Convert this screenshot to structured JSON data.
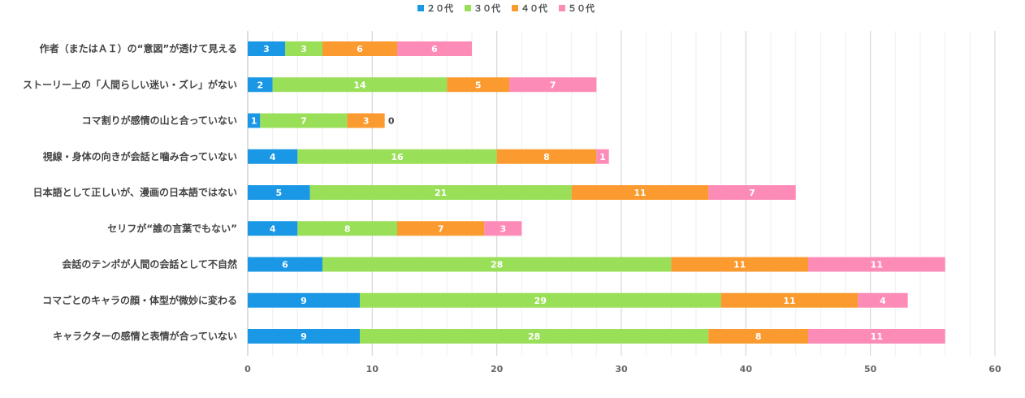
{
  "chart_data": {
    "type": "bar",
    "orientation": "horizontal",
    "stacked": true,
    "title": "",
    "xlabel": "",
    "ylabel": "",
    "xlim": [
      0,
      60
    ],
    "xticks": [
      0,
      10,
      20,
      30,
      40,
      50,
      60
    ],
    "grid": true,
    "legend_position": "top-center",
    "categories": [
      "作者（またはＡＩ）の“意図”が透けて見える",
      "ストーリー上の「人間らしい迷い・ズレ」がない",
      "コマ割りが感情の山と合っていない",
      "視線・身体の向きが会話と噛み合っていない",
      "日本語として正しいが、漫画の日本語ではない",
      "セリフが“誰の言葉でもない”",
      "会話のテンポが人間の会話として不自然",
      "コマごとのキャラの顔・体型が微妙に変わる",
      "キャラクターの感情と表情が合っていない"
    ],
    "series": [
      {
        "name": "２０代",
        "color": "#1a98e6",
        "values": [
          3,
          2,
          1,
          4,
          5,
          4,
          6,
          9,
          9
        ]
      },
      {
        "name": "３０代",
        "color": "#99df58",
        "values": [
          3,
          14,
          7,
          16,
          21,
          8,
          28,
          29,
          28
        ]
      },
      {
        "name": "４０代",
        "color": "#fb9a2f",
        "values": [
          6,
          5,
          3,
          8,
          11,
          7,
          11,
          11,
          8
        ]
      },
      {
        "name": "５０代",
        "color": "#fd8bb8",
        "values": [
          6,
          7,
          0,
          1,
          7,
          3,
          11,
          4,
          11
        ]
      }
    ]
  }
}
